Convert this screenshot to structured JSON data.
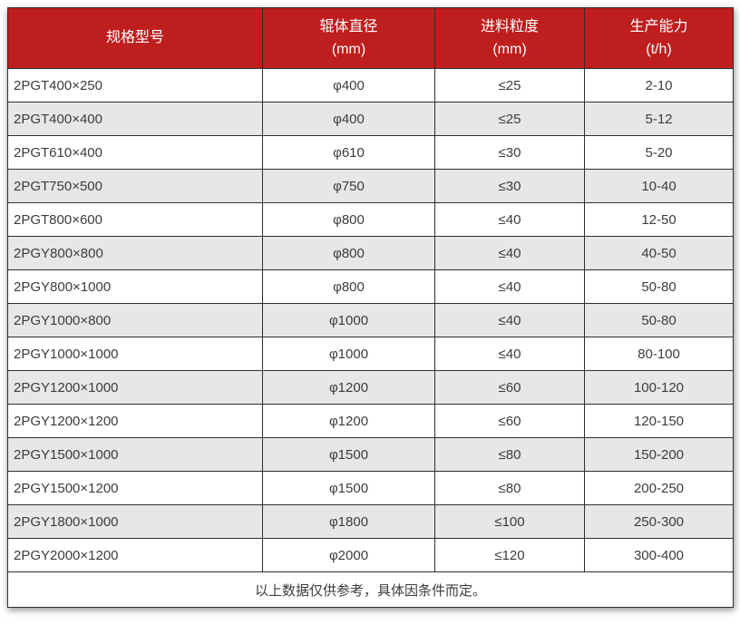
{
  "table": {
    "columns": [
      {
        "label": "规格型号",
        "unit": ""
      },
      {
        "label": "辊体直径",
        "unit": "(mm)"
      },
      {
        "label": "进料粒度",
        "unit": "(mm)"
      },
      {
        "label": "生产能力",
        "unit": "(t/h)"
      }
    ],
    "rows": [
      {
        "model": "2PGT400×250",
        "diameter": "φ400",
        "feed_size": "≤25",
        "capacity": "2-10"
      },
      {
        "model": "2PGT400×400",
        "diameter": "φ400",
        "feed_size": "≤25",
        "capacity": "5-12"
      },
      {
        "model": "2PGT610×400",
        "diameter": "φ610",
        "feed_size": "≤30",
        "capacity": "5-20"
      },
      {
        "model": "2PGT750×500",
        "diameter": "φ750",
        "feed_size": "≤30",
        "capacity": "10-40"
      },
      {
        "model": "2PGT800×600",
        "diameter": "φ800",
        "feed_size": "≤40",
        "capacity": "12-50"
      },
      {
        "model": "2PGY800×800",
        "diameter": "φ800",
        "feed_size": "≤40",
        "capacity": "40-50"
      },
      {
        "model": "2PGY800×1000",
        "diameter": "φ800",
        "feed_size": "≤40",
        "capacity": "50-80"
      },
      {
        "model": "2PGY1000×800",
        "diameter": "φ1000",
        "feed_size": "≤40",
        "capacity": "50-80"
      },
      {
        "model": "2PGY1000×1000",
        "diameter": "φ1000",
        "feed_size": "≤40",
        "capacity": "80-100"
      },
      {
        "model": "2PGY1200×1000",
        "diameter": "φ1200",
        "feed_size": "≤60",
        "capacity": "100-120"
      },
      {
        "model": "2PGY1200×1200",
        "diameter": "φ1200",
        "feed_size": "≤60",
        "capacity": "120-150"
      },
      {
        "model": "2PGY1500×1000",
        "diameter": "φ1500",
        "feed_size": "≤80",
        "capacity": "150-200"
      },
      {
        "model": "2PGY1500×1200",
        "diameter": "φ1500",
        "feed_size": "≤80",
        "capacity": "200-250"
      },
      {
        "model": "2PGY1800×1000",
        "diameter": "φ1800",
        "feed_size": "≤100",
        "capacity": "250-300"
      },
      {
        "model": "2PGY2000×1200",
        "diameter": "φ2000",
        "feed_size": "≤120",
        "capacity": "300-400"
      }
    ],
    "footnote": "以上数据仅供参考，具体因条件而定。"
  },
  "colors": {
    "header_bg": "#BE1E1E",
    "header_text": "#FFFFFF",
    "row_alt_bg": "#E7E7E7",
    "border": "#2E2E2E",
    "body_text": "#3C3C3C"
  }
}
